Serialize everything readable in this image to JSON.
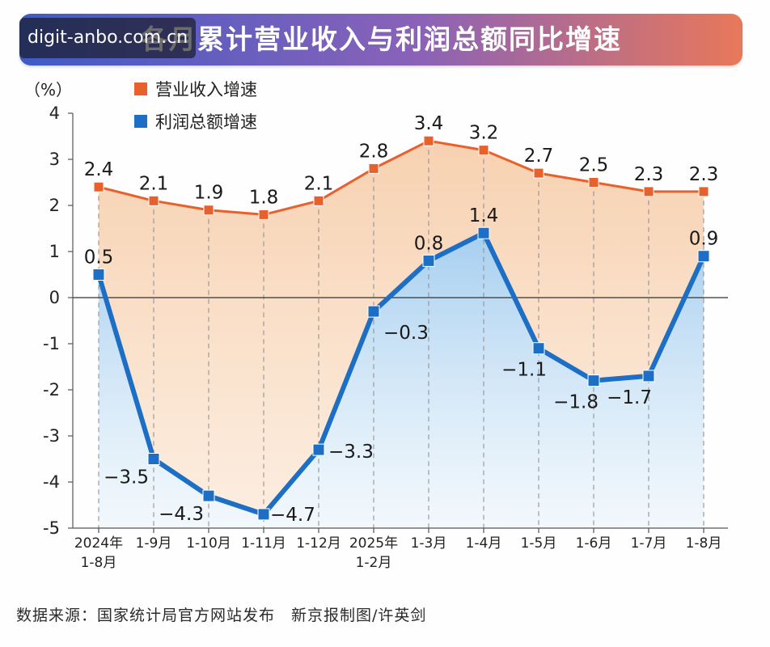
{
  "header": {
    "title": "各月累计营业收入与利润总额同比增速",
    "watermark": "digit-anbo.com.cn"
  },
  "footer": {
    "source": "数据来源：国家统计局官方网站发布　新京报制图/许英剑"
  },
  "chart_data": {
    "type": "line",
    "ylabel": "（%）",
    "ylim": [
      -5,
      4
    ],
    "yticks": [
      4,
      3,
      2,
      1,
      0,
      -1,
      -2,
      -3,
      -4,
      -5
    ],
    "categories": [
      "2024年\n1-8月",
      "1-9月",
      "1-10月",
      "1-11月",
      "1-12月",
      "2025年\n1-2月",
      "1-3月",
      "1-4月",
      "1-5月",
      "1-6月",
      "1-7月",
      "1-8月"
    ],
    "series": [
      {
        "name": "营业收入增速",
        "color": "#e8612c",
        "values": [
          2.4,
          2.1,
          1.9,
          1.8,
          2.1,
          2.8,
          3.4,
          3.2,
          2.7,
          2.5,
          2.3,
          2.3
        ],
        "labels": [
          "2.4",
          "2.1",
          "1.9",
          "1.8",
          "2.1",
          "2.8",
          "3.4",
          "3.2",
          "2.7",
          "2.5",
          "2.3",
          "2.3"
        ]
      },
      {
        "name": "利润总额增速",
        "color": "#1c6fc4",
        "values": [
          0.5,
          -3.5,
          -4.3,
          -4.7,
          -3.3,
          -0.3,
          0.8,
          1.4,
          -1.1,
          -1.8,
          -1.7,
          0.9
        ],
        "labels": [
          "0.5",
          "−3.5",
          "−4.3",
          "−4.7",
          "−3.3",
          "−0.3",
          "0.8",
          "1.4",
          "−1.1",
          "−1.8",
          "−1.7",
          "0.9"
        ]
      }
    ],
    "grid": "vertical-dashed",
    "legend_position": "top-left"
  }
}
